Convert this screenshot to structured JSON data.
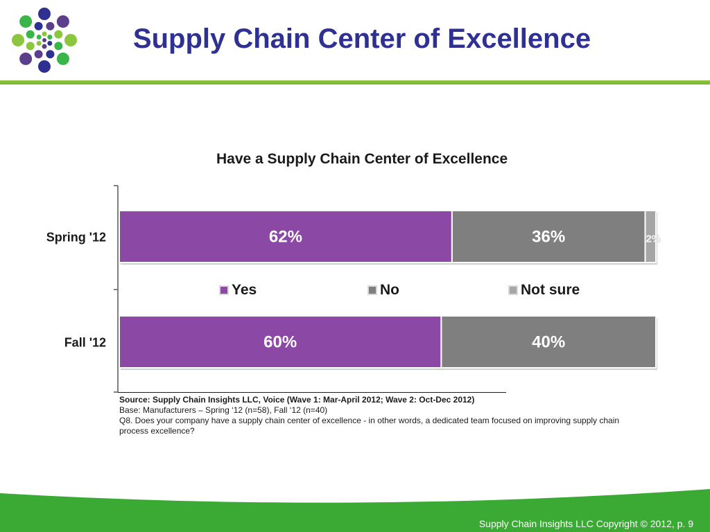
{
  "slide": {
    "title": "Supply Chain Center of Excellence",
    "footer": "Supply Chain Insights LLC Copyright © 2012, p. 9"
  },
  "logo": {
    "colors": [
      "#2e3192",
      "#5b3f8c",
      "#8cc63f",
      "#39b54a"
    ]
  },
  "colors": {
    "title": "#2e3192",
    "accent_green": "#8cc63f",
    "footer_green": "#3aaa35",
    "yes": "#8b49a5",
    "no": "#7f7f7f",
    "not_sure": "#a6a6a6"
  },
  "chart_data": {
    "type": "bar",
    "orientation": "horizontal",
    "stacked": true,
    "title": "Have a Supply Chain Center of Excellence",
    "categories": [
      "Spring '12",
      "Fall '12"
    ],
    "series": [
      {
        "name": "Yes",
        "values": [
          62,
          60
        ],
        "labels": [
          "62%",
          "60%"
        ],
        "color": "#8b49a5"
      },
      {
        "name": "No",
        "values": [
          36,
          40
        ],
        "labels": [
          "36%",
          "40%"
        ],
        "color": "#7f7f7f"
      },
      {
        "name": "Not sure",
        "values": [
          2,
          0
        ],
        "labels": [
          "2%",
          ""
        ],
        "color": "#a6a6a6"
      }
    ],
    "xlim": [
      0,
      100
    ],
    "grid": false,
    "legend_position": "center"
  },
  "notes": {
    "source": "Source:  Supply Chain Insights LLC, Voice (Wave 1: Mar-April 2012; Wave 2: Oct-Dec 2012)",
    "base": "Base:  Manufacturers – Spring ‘12 (n=58), Fall ‘12 (n=40)",
    "question": "Q8. Does your company have a supply chain center of excellence - in other words, a dedicated team focused on improving supply chain process excellence?"
  }
}
